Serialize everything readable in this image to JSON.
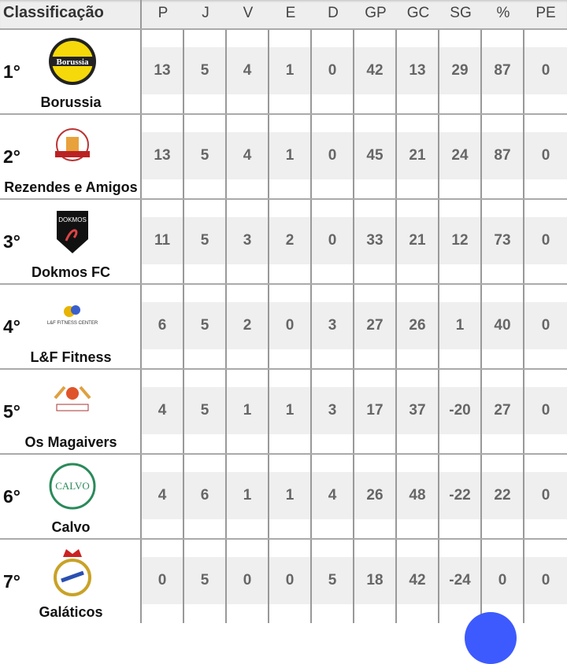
{
  "header": {
    "title": "Classificação",
    "columns": [
      "P",
      "J",
      "V",
      "E",
      "D",
      "GP",
      "GC",
      "SG",
      "%",
      "PE"
    ]
  },
  "rows": [
    {
      "pos": "1°",
      "team": "Borussia",
      "logo": "borussia-logo",
      "stats": [
        "13",
        "5",
        "4",
        "1",
        "0",
        "42",
        "13",
        "29",
        "87",
        "0"
      ]
    },
    {
      "pos": "2°",
      "team": "Rezendes e Amigos",
      "logo": "rezendes-logo",
      "stats": [
        "13",
        "5",
        "4",
        "1",
        "0",
        "45",
        "21",
        "24",
        "87",
        "0"
      ]
    },
    {
      "pos": "3°",
      "team": "Dokmos FC",
      "logo": "dokmos-logo",
      "stats": [
        "11",
        "5",
        "3",
        "2",
        "0",
        "33",
        "21",
        "12",
        "73",
        "0"
      ]
    },
    {
      "pos": "4°",
      "team": "L&F Fitness",
      "logo": "lf-fitness-logo",
      "stats": [
        "6",
        "5",
        "2",
        "0",
        "3",
        "27",
        "26",
        "1",
        "40",
        "0"
      ]
    },
    {
      "pos": "5°",
      "team": "Os Magaivers",
      "logo": "magaivers-logo",
      "stats": [
        "4",
        "5",
        "1",
        "1",
        "3",
        "17",
        "37",
        "-20",
        "27",
        "0"
      ]
    },
    {
      "pos": "6°",
      "team": "Calvo",
      "logo": "calvo-logo",
      "stats": [
        "4",
        "6",
        "1",
        "1",
        "4",
        "26",
        "48",
        "-22",
        "22",
        "0"
      ]
    },
    {
      "pos": "7°",
      "team": "Galáticos",
      "logo": "galaticos-logo",
      "stats": [
        "0",
        "5",
        "0",
        "0",
        "5",
        "18",
        "42",
        "-24",
        "0",
        "0"
      ]
    }
  ],
  "colors": {
    "fab": "#3d5afe",
    "header_bg": "#eeeeee",
    "cell_band": "#efefef"
  }
}
